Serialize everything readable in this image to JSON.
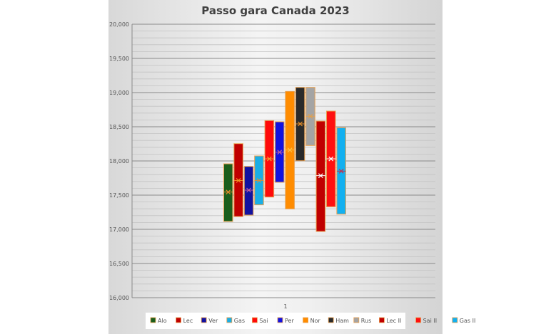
{
  "chart_data": {
    "type": "bar",
    "subtype": "floating-range-with-mean",
    "title": "Passo gara Canada 2023",
    "xlabel": "",
    "ylabel": "",
    "categories": [
      "1"
    ],
    "ylim": [
      16000,
      20000
    ],
    "yticks": [
      16000,
      16500,
      17000,
      17500,
      18000,
      18500,
      19000,
      19500,
      20000
    ],
    "ytick_labels": [
      "16,000",
      "16,500",
      "17,000",
      "17,500",
      "18,000",
      "18,500",
      "19,000",
      "19,500",
      "20,000"
    ],
    "grid": true,
    "legend_position": "bottom",
    "series": [
      {
        "name": "Alo",
        "min": 17115,
        "max": 17958,
        "mean": 17545,
        "color": "#1b5e1b",
        "marker": "#e08a2a"
      },
      {
        "name": "Lec",
        "min": 17187,
        "max": 18253,
        "mean": 17714,
        "color": "#c00000",
        "marker": "#f09020"
      },
      {
        "name": "Ver",
        "min": 17208,
        "max": 17920,
        "mean": 17573,
        "color": "#1212a0",
        "marker": "#c060a0"
      },
      {
        "name": "Gas",
        "min": 17358,
        "max": 18073,
        "mean": 17714,
        "color": "#1aaee6",
        "marker": "#d09040"
      },
      {
        "name": "Sai",
        "min": 17472,
        "max": 18590,
        "mean": 18031,
        "color": "#ff0a0a",
        "marker": "#f0a030"
      },
      {
        "name": "Per",
        "min": 17688,
        "max": 18573,
        "mean": 18128,
        "color": "#1212e0",
        "marker": "#c060a0"
      },
      {
        "name": "Nor",
        "min": 17299,
        "max": 19017,
        "mean": 18160,
        "color": "#ff8c00",
        "marker": "#ffc040"
      },
      {
        "name": "Ham",
        "min": 18003,
        "max": 19076,
        "mean": 18542,
        "color": "#2a2a2a",
        "marker": "#e08a2a"
      },
      {
        "name": "Rus",
        "min": 18226,
        "max": 19076,
        "mean": 18653,
        "color": "#a4a4a4",
        "marker": "#e0a050"
      },
      {
        "name": "Lec II",
        "min": 16969,
        "max": 18583,
        "mean": 17785,
        "color": "#c00000",
        "marker": "#ffffff"
      },
      {
        "name": "Sai II",
        "min": 17330,
        "max": 18729,
        "mean": 18031,
        "color": "#ff1010",
        "marker": "#ffffff"
      },
      {
        "name": "Gas II",
        "min": 17222,
        "max": 18486,
        "mean": 17851,
        "color": "#12b0f0",
        "marker": "#c03050"
      }
    ]
  }
}
